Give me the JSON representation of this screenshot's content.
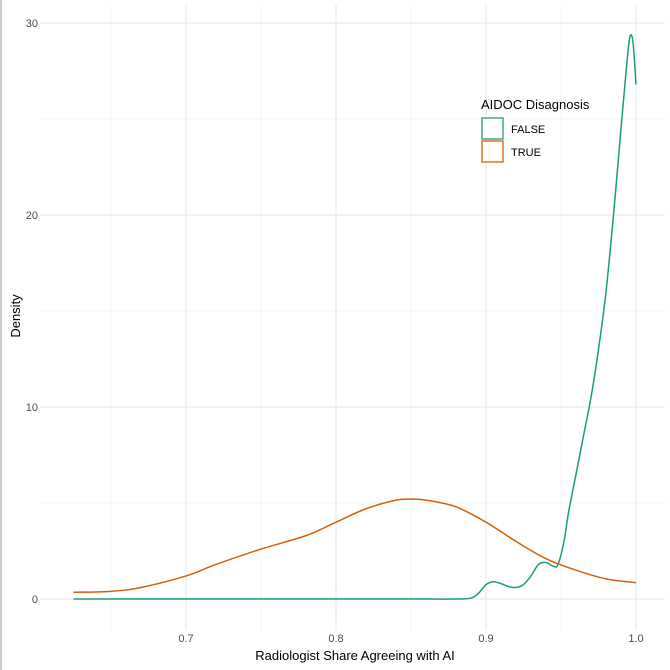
{
  "chart_data": {
    "type": "line",
    "title": "",
    "xlabel": "Radiologist Share Agreeing with AI",
    "ylabel": "Density",
    "xlim": [
      0.6,
      1.02
    ],
    "ylim": [
      0,
      31
    ],
    "x_ticks": [
      {
        "value": 0.7,
        "label": "0.7"
      },
      {
        "value": 0.8,
        "label": "0.8"
      },
      {
        "value": 0.9,
        "label": "0.9"
      },
      {
        "value": 1.0,
        "label": "1.0"
      }
    ],
    "y_ticks": [
      {
        "value": 0,
        "label": "0"
      },
      {
        "value": 10,
        "label": "10"
      },
      {
        "value": 20,
        "label": "20"
      },
      {
        "value": 30,
        "label": "30"
      }
    ],
    "grid": true,
    "legend": {
      "title": "AIDOC Disagnosis",
      "placement": "top-right"
    },
    "series": [
      {
        "name": "FALSE",
        "color": "#1b9e77",
        "points": [
          [
            0.625,
            0.0
          ],
          [
            0.7,
            0.0
          ],
          [
            0.8,
            0.0
          ],
          [
            0.85,
            0.0
          ],
          [
            0.88,
            0.0
          ],
          [
            0.89,
            0.05
          ],
          [
            0.895,
            0.3
          ],
          [
            0.9,
            0.75
          ],
          [
            0.905,
            0.9
          ],
          [
            0.91,
            0.8
          ],
          [
            0.915,
            0.65
          ],
          [
            0.92,
            0.6
          ],
          [
            0.925,
            0.75
          ],
          [
            0.93,
            1.2
          ],
          [
            0.935,
            1.8
          ],
          [
            0.94,
            1.9
          ],
          [
            0.945,
            1.7
          ],
          [
            0.948,
            1.8
          ],
          [
            0.952,
            3.0
          ],
          [
            0.955,
            4.5
          ],
          [
            0.96,
            6.5
          ],
          [
            0.965,
            8.5
          ],
          [
            0.97,
            10.5
          ],
          [
            0.975,
            13.0
          ],
          [
            0.98,
            16.0
          ],
          [
            0.985,
            20.0
          ],
          [
            0.99,
            24.5
          ],
          [
            0.994,
            28.0
          ],
          [
            0.996,
            29.3
          ],
          [
            0.998,
            29.0
          ],
          [
            1.0,
            26.8
          ]
        ]
      },
      {
        "name": "TRUE",
        "color": "#d95f02",
        "points": [
          [
            0.625,
            0.35
          ],
          [
            0.65,
            0.4
          ],
          [
            0.67,
            0.6
          ],
          [
            0.7,
            1.2
          ],
          [
            0.72,
            1.8
          ],
          [
            0.75,
            2.6
          ],
          [
            0.78,
            3.3
          ],
          [
            0.8,
            4.0
          ],
          [
            0.82,
            4.7
          ],
          [
            0.84,
            5.15
          ],
          [
            0.85,
            5.2
          ],
          [
            0.86,
            5.15
          ],
          [
            0.88,
            4.8
          ],
          [
            0.9,
            4.0
          ],
          [
            0.92,
            3.0
          ],
          [
            0.94,
            2.1
          ],
          [
            0.96,
            1.5
          ],
          [
            0.98,
            1.05
          ],
          [
            1.0,
            0.85
          ]
        ]
      }
    ]
  }
}
